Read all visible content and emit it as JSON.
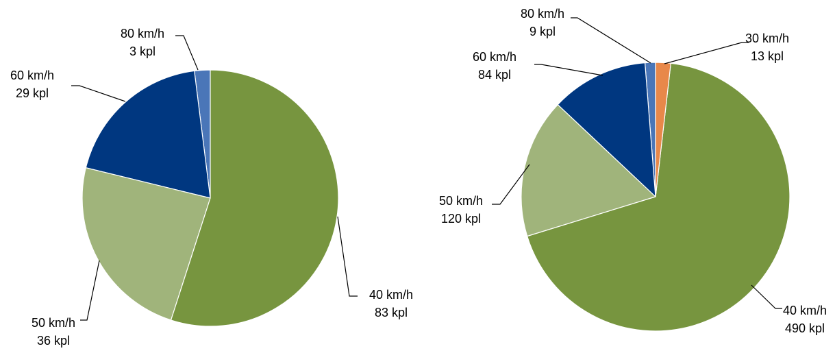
{
  "chart_data": [
    {
      "type": "pie",
      "categories": [
        "40 km/h",
        "50 km/h",
        "60 km/h",
        "80 km/h"
      ],
      "values": [
        83,
        36,
        29,
        3
      ],
      "value_labels": [
        "83 kpl",
        "36 kpl",
        "29 kpl",
        "3 kpl"
      ],
      "colors": [
        "#77953F",
        "#A0B47B",
        "#003780",
        "#4A76B8"
      ],
      "title": "",
      "legend": "none"
    },
    {
      "type": "pie",
      "categories": [
        "30 km/h",
        "40 km/h",
        "50 km/h",
        "60 km/h",
        "80 km/h"
      ],
      "values": [
        13,
        490,
        120,
        84,
        9
      ],
      "value_labels": [
        "13 kpl",
        "490 kpl",
        "120 kpl",
        "84 kpl",
        "9 kpl"
      ],
      "colors": [
        "#E8884A",
        "#77953F",
        "#A0B47B",
        "#003780",
        "#4A76B8"
      ],
      "title": "",
      "legend": "none"
    }
  ]
}
